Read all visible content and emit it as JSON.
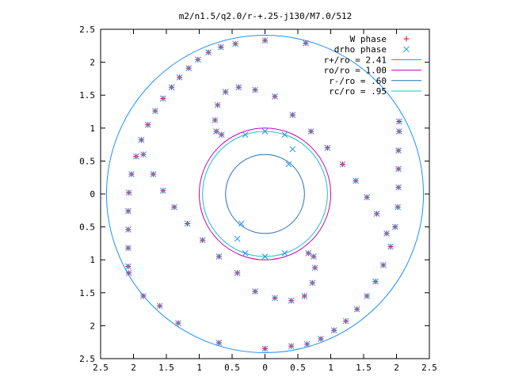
{
  "chart_data": {
    "type": "scatter",
    "title": "m2/n1.5/q2.0/r-+.25-j130/M7.0/512",
    "xlim": [
      -2.5,
      2.5
    ],
    "ylim": [
      -2.5,
      2.5
    ],
    "x_ticks": [
      -2.5,
      -2,
      -1.5,
      -1,
      -0.5,
      0,
      0.5,
      1,
      1.5,
      2,
      2.5
    ],
    "x_tick_labels": [
      "2.5",
      "2",
      "1.5",
      "1",
      "0.5",
      "0",
      "0.5",
      "1",
      "1.5",
      "2",
      "2.5"
    ],
    "y_ticks": [
      2.5,
      2,
      1.5,
      1,
      0.5,
      0,
      -0.5,
      -1,
      -1.5,
      -2,
      -2.5
    ],
    "y_tick_labels": [
      "2.5",
      "2",
      "1.5",
      "1",
      "0.5",
      "0",
      "0.5",
      "1",
      "1.5",
      "2",
      "2.5"
    ],
    "grid": false,
    "legend_position": "top-right",
    "series": [
      {
        "name": "W phase",
        "marker": "plus",
        "color": "#ff0000",
        "points": [
          [
            0.0,
            2.33
          ],
          [
            0.62,
            2.29
          ],
          [
            -0.45,
            2.28
          ],
          [
            -0.67,
            2.23
          ],
          [
            -0.86,
            2.15
          ],
          [
            -1.02,
            2.04
          ],
          [
            -1.16,
            1.91
          ],
          [
            -1.3,
            1.77
          ],
          [
            -1.42,
            1.62
          ],
          [
            -1.55,
            1.45
          ],
          [
            -1.67,
            1.26
          ],
          [
            -1.78,
            1.05
          ],
          [
            -1.88,
            0.82
          ],
          [
            -1.96,
            0.57
          ],
          [
            -2.03,
            0.3
          ],
          [
            -2.07,
            0.02
          ],
          [
            -2.08,
            -0.26
          ],
          [
            -2.08,
            -0.54
          ],
          [
            -2.08,
            -0.82
          ],
          [
            -2.08,
            -1.1
          ],
          [
            -2.07,
            -1.2
          ],
          [
            -1.85,
            -1.55
          ],
          [
            -1.6,
            -1.7
          ],
          [
            -1.32,
            -1.96
          ],
          [
            -0.7,
            -2.26
          ],
          [
            0.0,
            -2.35
          ],
          [
            0.4,
            -2.31
          ],
          [
            0.64,
            -2.28
          ],
          [
            0.85,
            -2.2
          ],
          [
            1.05,
            -2.07
          ],
          [
            1.23,
            -1.93
          ],
          [
            1.4,
            -1.75
          ],
          [
            1.55,
            -1.55
          ],
          [
            1.68,
            -1.33
          ],
          [
            1.8,
            -1.08
          ],
          [
            1.91,
            -0.8
          ],
          [
            1.98,
            -0.5
          ],
          [
            2.02,
            -0.2
          ],
          [
            2.03,
            0.1
          ],
          [
            2.03,
            0.38
          ],
          [
            2.03,
            0.66
          ],
          [
            2.04,
            0.95
          ],
          [
            2.04,
            1.1
          ],
          [
            -1.85,
            0.6
          ],
          [
            -1.7,
            0.3
          ],
          [
            -1.55,
            0.05
          ],
          [
            -1.38,
            -0.2
          ],
          [
            -1.18,
            -0.45
          ],
          [
            -0.95,
            -0.7
          ],
          [
            -0.7,
            -0.95
          ],
          [
            -0.42,
            -1.2
          ],
          [
            -0.15,
            -1.48
          ],
          [
            0.15,
            -1.58
          ],
          [
            0.4,
            -1.62
          ],
          [
            0.6,
            -1.55
          ],
          [
            0.72,
            -1.35
          ],
          [
            0.76,
            -1.12
          ],
          [
            0.74,
            -0.95
          ],
          [
            0.66,
            -0.9
          ],
          [
            1.85,
            -0.6
          ],
          [
            1.7,
            -0.3
          ],
          [
            1.55,
            -0.05
          ],
          [
            1.38,
            0.2
          ],
          [
            1.18,
            0.45
          ],
          [
            0.95,
            0.7
          ],
          [
            0.7,
            0.95
          ],
          [
            0.42,
            1.2
          ],
          [
            0.15,
            1.48
          ],
          [
            -0.15,
            1.58
          ],
          [
            -0.4,
            1.62
          ],
          [
            -0.6,
            1.55
          ],
          [
            -0.72,
            1.35
          ],
          [
            -0.76,
            1.12
          ],
          [
            -0.74,
            0.95
          ],
          [
            -0.66,
            0.9
          ]
        ]
      },
      {
        "name": "drho phase",
        "marker": "cross",
        "color": "#1e90ff",
        "points": [
          [
            0.0,
            2.33
          ],
          [
            0.62,
            2.29
          ],
          [
            -0.45,
            2.28
          ],
          [
            -0.67,
            2.23
          ],
          [
            -0.86,
            2.15
          ],
          [
            -1.02,
            2.04
          ],
          [
            -1.16,
            1.91
          ],
          [
            -1.3,
            1.77
          ],
          [
            -1.42,
            1.62
          ],
          [
            -1.55,
            1.45
          ],
          [
            -1.67,
            1.26
          ],
          [
            -1.78,
            1.05
          ],
          [
            -1.88,
            0.82
          ],
          [
            -1.96,
            0.57
          ],
          [
            -2.03,
            0.3
          ],
          [
            -2.07,
            0.02
          ],
          [
            -2.08,
            -0.26
          ],
          [
            -2.08,
            -0.54
          ],
          [
            -2.08,
            -0.82
          ],
          [
            -2.08,
            -1.1
          ],
          [
            -2.07,
            -1.2
          ],
          [
            -1.85,
            -1.55
          ],
          [
            -1.6,
            -1.7
          ],
          [
            -1.32,
            -1.96
          ],
          [
            -0.7,
            -2.26
          ],
          [
            0.0,
            -2.35
          ],
          [
            0.4,
            -2.31
          ],
          [
            0.64,
            -2.28
          ],
          [
            0.85,
            -2.2
          ],
          [
            1.05,
            -2.07
          ],
          [
            1.23,
            -1.93
          ],
          [
            1.4,
            -1.75
          ],
          [
            1.55,
            -1.55
          ],
          [
            1.68,
            -1.33
          ],
          [
            1.8,
            -1.08
          ],
          [
            1.91,
            -0.8
          ],
          [
            1.98,
            -0.5
          ],
          [
            2.02,
            -0.2
          ],
          [
            2.03,
            0.1
          ],
          [
            2.03,
            0.38
          ],
          [
            2.03,
            0.66
          ],
          [
            2.04,
            0.95
          ],
          [
            2.04,
            1.1
          ],
          [
            -1.85,
            0.6
          ],
          [
            -1.7,
            0.3
          ],
          [
            -1.55,
            0.05
          ],
          [
            -1.38,
            -0.2
          ],
          [
            -1.18,
            -0.45
          ],
          [
            -0.95,
            -0.7
          ],
          [
            -0.7,
            -0.95
          ],
          [
            -0.42,
            -1.2
          ],
          [
            -0.15,
            -1.48
          ],
          [
            0.15,
            -1.58
          ],
          [
            0.4,
            -1.62
          ],
          [
            0.6,
            -1.55
          ],
          [
            0.72,
            -1.35
          ],
          [
            0.76,
            -1.12
          ],
          [
            0.74,
            -0.95
          ],
          [
            0.66,
            -0.9
          ],
          [
            1.85,
            -0.6
          ],
          [
            1.7,
            -0.3
          ],
          [
            1.55,
            -0.05
          ],
          [
            1.38,
            0.2
          ],
          [
            1.18,
            0.45
          ],
          [
            0.95,
            0.7
          ],
          [
            0.7,
            0.95
          ],
          [
            0.42,
            1.2
          ],
          [
            0.15,
            1.48
          ],
          [
            -0.15,
            1.58
          ],
          [
            -0.4,
            1.62
          ],
          [
            -0.6,
            1.55
          ],
          [
            -0.72,
            1.35
          ],
          [
            -0.76,
            1.12
          ],
          [
            -0.74,
            0.95
          ],
          [
            -0.66,
            0.9
          ],
          [
            -0.3,
            0.9
          ],
          [
            0.0,
            0.95
          ],
          [
            0.3,
            0.9
          ],
          [
            0.42,
            0.68
          ],
          [
            0.36,
            0.45
          ],
          [
            0.3,
            -0.9
          ],
          [
            0.0,
            -0.95
          ],
          [
            -0.3,
            -0.9
          ],
          [
            -0.42,
            -0.68
          ],
          [
            -0.36,
            -0.45
          ]
        ]
      }
    ],
    "circles": [
      {
        "name": "r+/ro = 2.41",
        "radius": 2.41,
        "color": "#1e90ff"
      },
      {
        "name": "ro/ro = 1.00",
        "radius": 1.0,
        "color": "#c000c0"
      },
      {
        "name": "r-/ro = .60",
        "radius": 0.6,
        "color": "#1e70c0"
      },
      {
        "name": "rc/ro = .95",
        "radius": 0.95,
        "color": "#20c0c0"
      }
    ]
  }
}
